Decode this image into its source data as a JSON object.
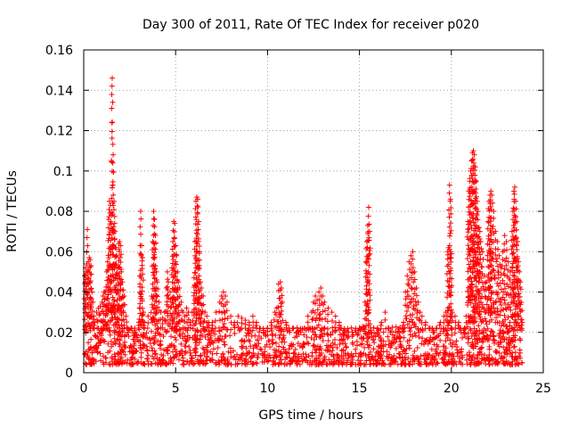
{
  "chart_data": {
    "type": "scatter",
    "title": "Day 300 of 2011, Rate Of TEC Index for receiver p020",
    "xlabel": "GPS time / hours",
    "ylabel": "ROTI / TECUs",
    "xlim": [
      0,
      25
    ],
    "ylim": [
      0,
      0.16
    ],
    "xticks": [
      0,
      5,
      10,
      15,
      20,
      25
    ],
    "yticks": [
      0,
      0.02,
      0.04,
      0.06,
      0.08,
      0.1,
      0.12,
      0.14,
      0.16
    ],
    "xtick_labels": [
      "0",
      "5",
      "10",
      "15",
      "20",
      "25"
    ],
    "ytick_labels": [
      "0",
      "0.02",
      "0.04",
      "0.06",
      "0.08",
      "0.1",
      "0.12",
      "0.14",
      "0.16"
    ],
    "grid": true,
    "marker": "+",
    "color": "#ff0000",
    "background_band": {
      "x_start": 0.05,
      "x_end": 23.85,
      "y_low": 0.004,
      "y_high": 0.022
    },
    "series": [
      {
        "values": [
          [
            0.05,
            0.048
          ],
          [
            0.1,
            0.052
          ],
          [
            0.15,
            0.05
          ],
          [
            0.2,
            0.071
          ],
          [
            0.25,
            0.055
          ],
          [
            0.3,
            0.057
          ],
          [
            0.35,
            0.056
          ],
          [
            0.4,
            0.053
          ],
          [
            0.45,
            0.04
          ],
          [
            0.5,
            0.035
          ],
          [
            0.55,
            0.028
          ],
          [
            0.6,
            0.025
          ],
          [
            0.7,
            0.03
          ],
          [
            0.8,
            0.032
          ],
          [
            0.9,
            0.033
          ],
          [
            1.0,
            0.035
          ],
          [
            1.05,
            0.038
          ],
          [
            1.1,
            0.04
          ],
          [
            1.15,
            0.04
          ],
          [
            1.2,
            0.04
          ],
          [
            1.25,
            0.05
          ],
          [
            1.3,
            0.055
          ],
          [
            1.35,
            0.076
          ],
          [
            1.4,
            0.085
          ],
          [
            1.45,
            0.083
          ],
          [
            1.5,
            0.078
          ],
          [
            1.55,
            0.146
          ],
          [
            1.6,
            0.108
          ],
          [
            1.65,
            0.085
          ],
          [
            1.7,
            0.07
          ],
          [
            1.75,
            0.062
          ],
          [
            1.8,
            0.058
          ],
          [
            1.85,
            0.052
          ],
          [
            1.9,
            0.064
          ],
          [
            1.95,
            0.065
          ],
          [
            2.0,
            0.063
          ],
          [
            2.05,
            0.05
          ],
          [
            2.1,
            0.045
          ],
          [
            2.15,
            0.041
          ],
          [
            2.2,
            0.038
          ],
          [
            2.3,
            0.028
          ],
          [
            2.4,
            0.02
          ],
          [
            2.6,
            0.022
          ],
          [
            2.8,
            0.02
          ],
          [
            3.0,
            0.025
          ],
          [
            3.05,
            0.048
          ],
          [
            3.1,
            0.08
          ],
          [
            3.15,
            0.063
          ],
          [
            3.2,
            0.057
          ],
          [
            3.25,
            0.03
          ],
          [
            3.3,
            0.025
          ],
          [
            3.5,
            0.028
          ],
          [
            3.7,
            0.038
          ],
          [
            3.75,
            0.065
          ],
          [
            3.8,
            0.08
          ],
          [
            3.85,
            0.076
          ],
          [
            3.9,
            0.068
          ],
          [
            3.95,
            0.05
          ],
          [
            4.0,
            0.045
          ],
          [
            4.1,
            0.035
          ],
          [
            4.2,
            0.03
          ],
          [
            4.3,
            0.027
          ],
          [
            4.4,
            0.03
          ],
          [
            4.5,
            0.042
          ],
          [
            4.55,
            0.05
          ],
          [
            4.6,
            0.045
          ],
          [
            4.7,
            0.04
          ],
          [
            4.8,
            0.052
          ],
          [
            4.85,
            0.065
          ],
          [
            4.9,
            0.075
          ],
          [
            4.95,
            0.074
          ],
          [
            5.0,
            0.063
          ],
          [
            5.05,
            0.058
          ],
          [
            5.1,
            0.05
          ],
          [
            5.15,
            0.045
          ],
          [
            5.2,
            0.042
          ],
          [
            5.3,
            0.035
          ],
          [
            5.4,
            0.03
          ],
          [
            5.5,
            0.028
          ],
          [
            5.6,
            0.032
          ],
          [
            5.7,
            0.03
          ],
          [
            5.8,
            0.025
          ],
          [
            5.9,
            0.03
          ],
          [
            6.0,
            0.047
          ],
          [
            6.05,
            0.065
          ],
          [
            6.1,
            0.085
          ],
          [
            6.15,
            0.087
          ],
          [
            6.2,
            0.086
          ],
          [
            6.25,
            0.075
          ],
          [
            6.3,
            0.06
          ],
          [
            6.35,
            0.045
          ],
          [
            6.4,
            0.042
          ],
          [
            6.5,
            0.038
          ],
          [
            6.6,
            0.03
          ],
          [
            6.7,
            0.028
          ],
          [
            6.8,
            0.025
          ],
          [
            7.0,
            0.025
          ],
          [
            7.2,
            0.03
          ],
          [
            7.4,
            0.035
          ],
          [
            7.5,
            0.038
          ],
          [
            7.6,
            0.04
          ],
          [
            7.7,
            0.038
          ],
          [
            7.8,
            0.035
          ],
          [
            8.0,
            0.028
          ],
          [
            8.2,
            0.025
          ],
          [
            8.4,
            0.028
          ],
          [
            8.6,
            0.027
          ],
          [
            8.8,
            0.026
          ],
          [
            9.0,
            0.025
          ],
          [
            9.2,
            0.028
          ],
          [
            9.4,
            0.025
          ],
          [
            9.6,
            0.022
          ],
          [
            9.8,
            0.02
          ],
          [
            10.0,
            0.022
          ],
          [
            10.2,
            0.025
          ],
          [
            10.4,
            0.03
          ],
          [
            10.5,
            0.032
          ],
          [
            10.6,
            0.044
          ],
          [
            10.7,
            0.045
          ],
          [
            10.75,
            0.042
          ],
          [
            10.8,
            0.035
          ],
          [
            11.0,
            0.025
          ],
          [
            11.2,
            0.02
          ],
          [
            11.4,
            0.022
          ],
          [
            11.6,
            0.018
          ],
          [
            11.8,
            0.02
          ],
          [
            12.0,
            0.022
          ],
          [
            12.2,
            0.028
          ],
          [
            12.4,
            0.03
          ],
          [
            12.5,
            0.035
          ],
          [
            12.6,
            0.038
          ],
          [
            12.7,
            0.036
          ],
          [
            12.8,
            0.04
          ],
          [
            12.9,
            0.042
          ],
          [
            13.0,
            0.038
          ],
          [
            13.1,
            0.035
          ],
          [
            13.3,
            0.032
          ],
          [
            13.5,
            0.03
          ],
          [
            13.7,
            0.028
          ],
          [
            13.9,
            0.025
          ],
          [
            14.0,
            0.022
          ],
          [
            14.2,
            0.02
          ],
          [
            14.4,
            0.018
          ],
          [
            14.6,
            0.018
          ],
          [
            14.8,
            0.02
          ],
          [
            15.0,
            0.022
          ],
          [
            15.2,
            0.023
          ],
          [
            15.3,
            0.035
          ],
          [
            15.35,
            0.055
          ],
          [
            15.4,
            0.065
          ],
          [
            15.45,
            0.073
          ],
          [
            15.5,
            0.082
          ],
          [
            15.55,
            0.07
          ],
          [
            15.6,
            0.02
          ],
          [
            15.8,
            0.015
          ],
          [
            16.0,
            0.02
          ],
          [
            16.2,
            0.025
          ],
          [
            16.4,
            0.03
          ],
          [
            16.6,
            0.022
          ],
          [
            16.8,
            0.015
          ],
          [
            17.0,
            0.012
          ],
          [
            17.2,
            0.018
          ],
          [
            17.4,
            0.025
          ],
          [
            17.5,
            0.04
          ],
          [
            17.6,
            0.048
          ],
          [
            17.7,
            0.055
          ],
          [
            17.8,
            0.058
          ],
          [
            17.9,
            0.06
          ],
          [
            18.0,
            0.05
          ],
          [
            18.1,
            0.042
          ],
          [
            18.2,
            0.035
          ],
          [
            18.3,
            0.03
          ],
          [
            18.4,
            0.028
          ],
          [
            18.6,
            0.025
          ],
          [
            18.8,
            0.022
          ],
          [
            19.0,
            0.02
          ],
          [
            19.2,
            0.022
          ],
          [
            19.4,
            0.025
          ],
          [
            19.6,
            0.028
          ],
          [
            19.7,
            0.03
          ],
          [
            19.8,
            0.06
          ],
          [
            19.85,
            0.062
          ],
          [
            19.9,
            0.093
          ],
          [
            19.95,
            0.086
          ],
          [
            20.0,
            0.059
          ],
          [
            20.05,
            0.03
          ],
          [
            20.2,
            0.028
          ],
          [
            20.4,
            0.025
          ],
          [
            20.5,
            0.022
          ],
          [
            20.7,
            0.02
          ],
          [
            20.8,
            0.028
          ],
          [
            20.9,
            0.075
          ],
          [
            20.95,
            0.09
          ],
          [
            21.0,
            0.095
          ],
          [
            21.05,
            0.1
          ],
          [
            21.1,
            0.105
          ],
          [
            21.15,
            0.109
          ],
          [
            21.2,
            0.11
          ],
          [
            21.25,
            0.108
          ],
          [
            21.3,
            0.102
          ],
          [
            21.35,
            0.095
          ],
          [
            21.4,
            0.085
          ],
          [
            21.45,
            0.08
          ],
          [
            21.5,
            0.072
          ],
          [
            21.55,
            0.07
          ],
          [
            21.6,
            0.065
          ],
          [
            21.7,
            0.06
          ],
          [
            21.8,
            0.048
          ],
          [
            21.9,
            0.045
          ],
          [
            22.0,
            0.075
          ],
          [
            22.05,
            0.085
          ],
          [
            22.1,
            0.088
          ],
          [
            22.15,
            0.09
          ],
          [
            22.2,
            0.088
          ],
          [
            22.3,
            0.08
          ],
          [
            22.4,
            0.07
          ],
          [
            22.5,
            0.065
          ],
          [
            22.6,
            0.058
          ],
          [
            22.7,
            0.052
          ],
          [
            22.8,
            0.06
          ],
          [
            22.9,
            0.068
          ],
          [
            23.0,
            0.065
          ],
          [
            23.1,
            0.055
          ],
          [
            23.2,
            0.05
          ],
          [
            23.3,
            0.07
          ],
          [
            23.35,
            0.08
          ],
          [
            23.4,
            0.09
          ],
          [
            23.45,
            0.092
          ],
          [
            23.5,
            0.085
          ],
          [
            23.55,
            0.075
          ],
          [
            23.6,
            0.065
          ],
          [
            23.65,
            0.055
          ],
          [
            23.7,
            0.05
          ],
          [
            23.75,
            0.045
          ],
          [
            23.8,
            0.035
          ],
          [
            23.85,
            0.025
          ]
        ]
      }
    ]
  }
}
